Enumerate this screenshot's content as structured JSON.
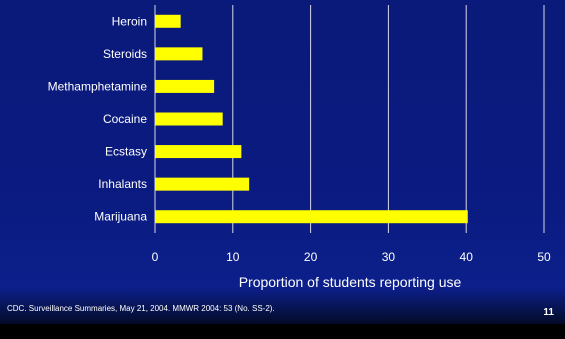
{
  "colors": {
    "bar": "#ffff00",
    "grid": "#d8d8e8",
    "background": "#0a1a80"
  },
  "chart_data": {
    "type": "bar",
    "orientation": "horizontal",
    "categories": [
      "Heroin",
      "Steroids",
      "Methamphetamine",
      "Cocaine",
      "Ecstasy",
      "Inhalants",
      "Marijuana"
    ],
    "values": [
      3.3,
      6.1,
      7.6,
      8.7,
      11.1,
      12.1,
      40.2
    ],
    "xlabel": "Proportion of students reporting use",
    "xlim": [
      0,
      50
    ],
    "xticks": [
      0,
      10,
      20,
      30,
      40,
      50
    ],
    "grid": true
  },
  "footer": {
    "citation": "CDC. Surveillance Summaries, May 21, 2004. MMWR 2004: 53 (No. SS-2).",
    "slide_number": "11"
  }
}
